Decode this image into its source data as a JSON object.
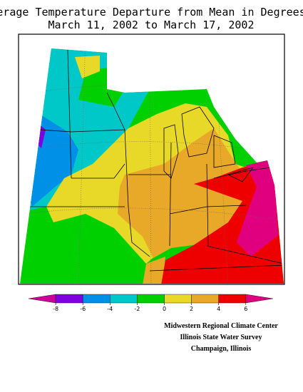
{
  "title": {
    "line1": "Average Temperature Departure from Mean in Degrees F",
    "line2": "March 11, 2002 to March 17, 2002"
  },
  "legend": {
    "colors": [
      "#cc0099",
      "#7f00e0",
      "#0090e8",
      "#00c8c8",
      "#00d000",
      "#e8d828",
      "#e8a828",
      "#ee0000",
      "#e0007f"
    ],
    "ticks": [
      -8,
      -6,
      -4,
      -2,
      0,
      2,
      4,
      6
    ]
  },
  "credits": [
    "Midwestern Regional Climate Center",
    "Illinois State Water Survey",
    "Champaign, Illinois"
  ]
}
